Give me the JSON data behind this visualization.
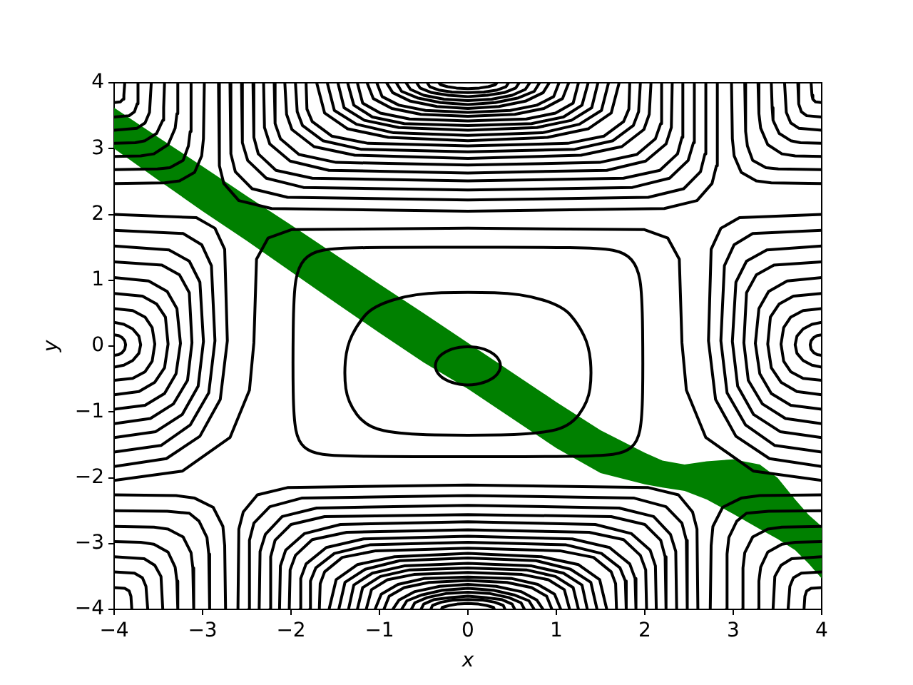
{
  "chart_data": {
    "type": "line",
    "xlabel": "x",
    "ylabel": "y",
    "xlim": [
      -4,
      4
    ],
    "ylim": [
      -4,
      4
    ],
    "color": "#000000",
    "xticks": [
      {
        "value": -4,
        "label": "−4"
      },
      {
        "value": -3,
        "label": "−3"
      },
      {
        "value": -2,
        "label": "−2"
      },
      {
        "value": -1,
        "label": "−1"
      },
      0,
      1,
      2,
      3,
      4
    ],
    "yticks": [
      {
        "value": -4,
        "label": "−4"
      },
      {
        "value": -3,
        "label": "−3"
      },
      {
        "value": -2,
        "label": "−2"
      },
      {
        "value": -1,
        "label": "−1"
      },
      0,
      1,
      2,
      3,
      4
    ],
    "series": [
      {
        "type": "area",
        "color": "#008000",
        "x": [
          -4,
          -3.5,
          -3,
          -2.5,
          -2,
          -1.5,
          -1,
          -0.5,
          0,
          0.5,
          1,
          1.5,
          2,
          2.2,
          2.45,
          2.7,
          3,
          3.3,
          3.5,
          3.7,
          3.85,
          4
        ],
        "values": [
          null,
          null,
          null,
          null,
          null,
          null,
          null,
          null,
          null,
          null,
          null,
          null,
          null,
          null,
          null,
          null,
          null,
          null,
          null,
          null,
          null,
          null
        ],
        "upper": [
          3.62,
          3.17,
          2.73,
          2.28,
          1.84,
          1.39,
          0.94,
          0.5,
          0.05,
          -0.4,
          -0.85,
          -1.28,
          -1.62,
          -1.74,
          -1.8,
          -1.75,
          -1.72,
          -1.8,
          -2.0,
          -2.33,
          -2.56,
          -2.74
        ],
        "lower": [
          3.0,
          2.52,
          2.05,
          1.6,
          1.13,
          0.66,
          0.2,
          -0.25,
          -0.65,
          -1.1,
          -1.55,
          -1.93,
          -2.1,
          -2.15,
          -2.2,
          -2.33,
          -2.55,
          -2.78,
          -2.93,
          -3.1,
          -3.3,
          -3.53
        ]
      },
      {
        "x": [
          -4,
          -3.23,
          -2.69,
          -2.47,
          -2.42,
          -2.39,
          -2.26,
          -1.99,
          0,
          1.99,
          2.26,
          2.39,
          2.42,
          2.47,
          2.69,
          3.23,
          4
        ],
        "values": [
          -2.04,
          -1.9,
          -1.39,
          -0.67,
          0.05,
          1.32,
          1.64,
          1.77,
          1.79,
          1.77,
          1.64,
          1.32,
          0.05,
          -0.67,
          -1.39,
          -1.9,
          -2.04
        ]
      },
      {
        "x": [
          -2.82,
          -2.81,
          -2.76,
          -2.59,
          -2.22,
          0,
          2.22,
          2.59,
          2.76,
          2.81,
          2.82
        ],
        "values": [
          4,
          2.74,
          2.47,
          2.21,
          2.09,
          2.05,
          2.09,
          2.21,
          2.47,
          2.74,
          4
        ]
      },
      {
        "x": [
          -2.69,
          -2.68,
          -2.63,
          -2.44,
          -2.04,
          0,
          2.04,
          2.44,
          2.63,
          2.68,
          2.69
        ],
        "values": [
          4,
          2.92,
          2.65,
          2.39,
          2.26,
          2.22,
          2.26,
          2.39,
          2.65,
          2.92,
          4
        ]
      },
      {
        "x": [
          -2.56,
          -2.55,
          -2.49,
          -2.28,
          -1.86,
          0,
          1.86,
          2.28,
          2.49,
          2.55,
          2.56
        ],
        "values": [
          4,
          3.09,
          2.82,
          2.55,
          2.41,
          2.37,
          2.41,
          2.55,
          2.82,
          3.09,
          4
        ]
      },
      {
        "x": [
          -2.43,
          -2.42,
          -2.37,
          -2.17,
          -1.76,
          0,
          1.76,
          2.17,
          2.37,
          2.42,
          2.43
        ],
        "values": [
          4,
          3.17,
          2.92,
          2.67,
          2.55,
          2.51,
          2.55,
          2.67,
          2.92,
          3.17,
          4
        ]
      },
      {
        "x": [
          -2.31,
          -2.3,
          -2.24,
          -2.01,
          -1.57,
          0,
          1.57,
          2.01,
          2.24,
          2.3,
          2.31
        ],
        "values": [
          4,
          3.32,
          3.07,
          2.81,
          2.67,
          2.63,
          2.67,
          2.81,
          3.07,
          3.32,
          4
        ]
      },
      {
        "x": [
          -2.19,
          -2.18,
          -2.12,
          -1.91,
          -1.49,
          0,
          1.49,
          1.91,
          2.12,
          2.18,
          2.19
        ],
        "values": [
          4,
          3.38,
          3.15,
          2.91,
          2.79,
          2.75,
          2.79,
          2.91,
          3.15,
          3.38,
          4
        ]
      },
      {
        "x": [
          -2.07,
          -2.05,
          -1.99,
          -1.74,
          -1.28,
          0,
          1.28,
          1.74,
          1.99,
          2.05,
          2.07
        ],
        "values": [
          4,
          3.52,
          3.29,
          3.03,
          2.9,
          2.85,
          2.9,
          3.03,
          3.29,
          3.52,
          4
        ]
      },
      {
        "x": [
          -1.95,
          -1.93,
          -1.87,
          -1.64,
          -1.21,
          0,
          1.21,
          1.64,
          1.87,
          1.93,
          1.95
        ],
        "values": [
          4,
          3.56,
          3.35,
          3.12,
          2.99,
          2.95,
          2.99,
          3.12,
          3.35,
          3.56,
          4
        ]
      },
      {
        "x": [
          -1.83,
          -1.82,
          -1.76,
          -1.54,
          -1.13,
          0,
          1.13,
          1.54,
          1.76,
          1.82,
          1.83
        ],
        "values": [
          4,
          3.6,
          3.41,
          3.19,
          3.08,
          3.04,
          3.08,
          3.19,
          3.41,
          3.6,
          4
        ]
      },
      {
        "x": [
          -1.71,
          -1.62,
          -1.36,
          -0.9,
          0,
          0.9,
          1.36,
          1.62,
          1.71
        ],
        "values": [
          4,
          3.54,
          3.3,
          3.17,
          3.12,
          3.17,
          3.3,
          3.54,
          4
        ]
      },
      {
        "x": [
          -1.59,
          -1.51,
          -1.26,
          -0.84,
          0,
          0.84,
          1.26,
          1.51,
          1.59
        ],
        "values": [
          4,
          3.58,
          3.37,
          3.24,
          3.2,
          3.24,
          3.37,
          3.58,
          4
        ]
      },
      {
        "x": [
          -1.47,
          -1.4,
          -1.17,
          -0.78,
          0,
          0.78,
          1.17,
          1.4,
          1.47
        ],
        "values": [
          4,
          3.62,
          3.43,
          3.32,
          3.28,
          3.32,
          3.43,
          3.62,
          4
        ]
      },
      {
        "x": [
          -1.36,
          -1.29,
          -1.08,
          -0.72,
          0,
          0.72,
          1.08,
          1.29,
          1.36
        ],
        "values": [
          4,
          3.66,
          3.48,
          3.38,
          3.35,
          3.38,
          3.48,
          3.66,
          4
        ]
      },
      {
        "x": [
          -1.25,
          -1.19,
          -0.99,
          -0.66,
          0,
          0.66,
          0.99,
          1.19,
          1.25
        ],
        "values": [
          4,
          3.69,
          3.54,
          3.45,
          3.42,
          3.45,
          3.54,
          3.69,
          4
        ]
      },
      {
        "x": [
          -1.14,
          -1.07,
          -0.86,
          -0.53,
          0,
          0.53,
          0.86,
          1.07,
          1.14
        ],
        "values": [
          4,
          3.76,
          3.61,
          3.52,
          3.49,
          3.52,
          3.61,
          3.76,
          4
        ]
      },
      {
        "x": [
          -1.03,
          -0.97,
          -0.78,
          -0.48,
          0,
          0.48,
          0.78,
          0.97,
          1.03
        ],
        "values": [
          4,
          3.79,
          3.66,
          3.58,
          3.55,
          3.58,
          3.66,
          3.79,
          4
        ]
      },
      {
        "x": [
          -0.92,
          -0.85,
          -0.65,
          -0.35,
          0,
          0.35,
          0.65,
          0.85,
          0.92
        ],
        "values": [
          4,
          3.85,
          3.72,
          3.64,
          3.61,
          3.64,
          3.72,
          3.85,
          4
        ]
      },
      {
        "x": [
          -0.81,
          -0.75,
          -0.57,
          -0.31,
          0,
          0.31,
          0.57,
          0.75,
          0.81
        ],
        "values": [
          4,
          3.87,
          3.77,
          3.7,
          3.67,
          3.7,
          3.77,
          3.87,
          4
        ]
      },
      {
        "x": [
          -0.7,
          -0.65,
          -0.5,
          -0.27,
          0,
          0.27,
          0.5,
          0.65,
          0.7
        ],
        "values": [
          4,
          3.9,
          3.81,
          3.75,
          3.73,
          3.75,
          3.81,
          3.9,
          4
        ]
      },
      {
        "x": [
          -0.58,
          -0.54,
          -0.41,
          -0.22,
          0,
          0.22,
          0.41,
          0.54,
          0.58
        ],
        "values": [
          4,
          3.92,
          3.85,
          3.81,
          3.79,
          3.81,
          3.85,
          3.92,
          4
        ]
      },
      {
        "x": [
          -0.46,
          -0.43,
          -0.33,
          -0.18,
          0,
          0.18,
          0.33,
          0.43,
          0.46
        ],
        "values": [
          4,
          3.94,
          3.89,
          3.86,
          3.85,
          3.86,
          3.89,
          3.94,
          4
        ]
      },
      {
        "x": [
          -0.33,
          -0.31,
          -0.23,
          -0.13,
          0,
          0.13,
          0.23,
          0.31,
          0.33
        ],
        "values": [
          4,
          3.97,
          3.94,
          3.92,
          3.91,
          3.92,
          3.94,
          3.97,
          4
        ]
      },
      {
        "x": [
          -2.6,
          -2.59,
          -2.54,
          -2.38,
          -2.04,
          0,
          2.04,
          2.38,
          2.54,
          2.59,
          2.6
        ],
        "values": [
          -4,
          -2.78,
          -2.52,
          -2.26,
          -2.15,
          -2.11,
          -2.15,
          -2.26,
          -2.52,
          -2.78,
          -4
        ]
      },
      {
        "x": [
          -2.48,
          -2.47,
          -2.42,
          -2.24,
          -1.88,
          0,
          1.88,
          2.24,
          2.42,
          2.47,
          2.48
        ],
        "values": [
          -4,
          -2.95,
          -2.69,
          -2.44,
          -2.31,
          -2.27,
          -2.31,
          -2.44,
          -2.69,
          -2.95,
          -4
        ]
      },
      {
        "x": [
          -2.36,
          -2.35,
          -2.29,
          -2.1,
          -1.71,
          0,
          1.71,
          2.1,
          2.29,
          2.35,
          2.36
        ],
        "values": [
          -4,
          -3.12,
          -2.86,
          -2.59,
          -2.46,
          -2.42,
          -2.46,
          -2.59,
          -2.86,
          -3.12,
          -4
        ]
      },
      {
        "x": [
          -2.24,
          -2.23,
          -2.18,
          -2.0,
          -1.62,
          0,
          1.62,
          2.0,
          2.18,
          2.23,
          2.24
        ],
        "values": [
          -4,
          -3.2,
          -2.95,
          -2.71,
          -2.59,
          -2.56,
          -2.59,
          -2.71,
          -2.95,
          -3.2,
          -4
        ]
      },
      {
        "x": [
          -2.13,
          -2.12,
          -2.06,
          -1.85,
          -1.44,
          0,
          1.44,
          1.85,
          2.06,
          2.12,
          2.13
        ],
        "values": [
          -4,
          -3.34,
          -3.1,
          -2.85,
          -2.71,
          -2.67,
          -2.71,
          -2.85,
          -3.1,
          -3.34,
          -4
        ]
      },
      {
        "x": [
          -2.02,
          -2.01,
          -1.95,
          -1.76,
          -1.37,
          0,
          1.37,
          1.76,
          1.95,
          2.01,
          2.02
        ],
        "values": [
          -4,
          -3.4,
          -3.18,
          -2.94,
          -2.83,
          -2.79,
          -2.83,
          -2.94,
          -3.18,
          -3.4,
          -4
        ]
      },
      {
        "x": [
          -1.9,
          -1.89,
          -1.83,
          -1.6,
          -1.18,
          0,
          1.18,
          1.6,
          1.83,
          1.89,
          1.9
        ],
        "values": [
          -4,
          -3.53,
          -3.31,
          -3.06,
          -2.93,
          -2.89,
          -2.93,
          -3.06,
          -3.31,
          -3.53,
          -4
        ]
      },
      {
        "x": [
          -1.79,
          -1.78,
          -1.72,
          -1.51,
          -1.11,
          0,
          1.11,
          1.51,
          1.72,
          1.78,
          1.79
        ],
        "values": [
          -4,
          -3.57,
          -3.37,
          -3.15,
          -3.02,
          -2.98,
          -3.02,
          -3.15,
          -3.37,
          -3.57,
          -4
        ]
      },
      {
        "x": [
          -1.68,
          -1.67,
          -1.62,
          -1.42,
          -1.04,
          0,
          1.04,
          1.42,
          1.62,
          1.67,
          1.68
        ],
        "values": [
          -4,
          -3.61,
          -3.43,
          -3.21,
          -3.11,
          -3.07,
          -3.11,
          -3.21,
          -3.43,
          -3.61,
          -4
        ]
      },
      {
        "x": [
          -1.57,
          -1.49,
          -1.25,
          -0.83,
          0,
          0.83,
          1.25,
          1.49,
          1.57
        ],
        "values": [
          -4,
          -3.55,
          -3.32,
          -3.2,
          -3.15,
          -3.2,
          -3.32,
          -3.55,
          -4
        ]
      },
      {
        "x": [
          -1.46,
          -1.39,
          -1.16,
          -0.77,
          0,
          0.77,
          1.16,
          1.39,
          1.46
        ],
        "values": [
          -4,
          -3.59,
          -3.39,
          -3.26,
          -3.22,
          -3.26,
          -3.39,
          -3.59,
          -4
        ]
      },
      {
        "x": [
          -1.35,
          -1.29,
          -1.08,
          -0.72,
          0,
          0.72,
          1.08,
          1.29,
          1.35
        ],
        "values": [
          -4,
          -3.63,
          -3.45,
          -3.34,
          -3.3,
          -3.34,
          -3.45,
          -3.63,
          -4
        ]
      },
      {
        "x": [
          -1.25,
          -1.19,
          -0.99,
          -0.66,
          0,
          0.66,
          0.99,
          1.19,
          1.25
        ],
        "values": [
          -4,
          -3.67,
          -3.5,
          -3.4,
          -3.37,
          -3.4,
          -3.5,
          -3.67,
          -4
        ]
      },
      {
        "x": [
          -1.15,
          -1.09,
          -0.91,
          -0.61,
          0,
          0.61,
          0.91,
          1.09,
          1.15
        ],
        "values": [
          -4,
          -3.7,
          -3.55,
          -3.47,
          -3.44,
          -3.47,
          -3.55,
          -3.7,
          -4
        ]
      },
      {
        "x": [
          -1.05,
          -0.98,
          -0.79,
          -0.49,
          0,
          0.49,
          0.79,
          0.98,
          1.05
        ],
        "values": [
          -4,
          -3.77,
          -3.62,
          -3.53,
          -3.51,
          -3.53,
          -3.62,
          -3.77,
          -4
        ]
      },
      {
        "x": [
          -0.95,
          -0.89,
          -0.72,
          -0.44,
          0,
          0.44,
          0.72,
          0.89,
          0.95
        ],
        "values": [
          -4,
          -3.8,
          -3.67,
          -3.59,
          -3.56,
          -3.59,
          -3.67,
          -3.8,
          -4
        ]
      },
      {
        "x": [
          -0.85,
          -0.78,
          -0.6,
          -0.32,
          0,
          0.32,
          0.6,
          0.78,
          0.85
        ],
        "values": [
          -4,
          -3.86,
          -3.73,
          -3.65,
          -3.62,
          -3.65,
          -3.73,
          -3.86,
          -4
        ]
      },
      {
        "x": [
          -0.75,
          -0.69,
          -0.52,
          -0.29,
          0,
          0.29,
          0.52,
          0.69,
          0.75
        ],
        "values": [
          -4,
          -3.87,
          -3.78,
          -3.71,
          -3.68,
          -3.71,
          -3.78,
          -3.87,
          -4
        ]
      },
      {
        "x": [
          -0.64,
          -0.6,
          -0.46,
          -0.25,
          0,
          0.25,
          0.46,
          0.6,
          0.64
        ],
        "values": [
          -4,
          -3.9,
          -3.82,
          -3.76,
          -3.74,
          -3.76,
          -3.82,
          -3.9,
          -4
        ]
      },
      {
        "x": [
          -0.53,
          -0.5,
          -0.38,
          -0.2,
          0,
          0.2,
          0.38,
          0.5,
          0.53
        ],
        "values": [
          -4,
          -3.92,
          -3.85,
          -3.82,
          -3.8,
          -3.82,
          -3.85,
          -3.92,
          -4
        ]
      },
      {
        "x": [
          -0.42,
          -0.4,
          -0.3,
          -0.17,
          0,
          0.17,
          0.3,
          0.4,
          0.42
        ],
        "values": [
          -4,
          -3.94,
          -3.89,
          -3.86,
          -3.85,
          -3.86,
          -3.89,
          -3.94,
          -4
        ]
      },
      {
        "x": [
          -0.3,
          -0.29,
          -0.21,
          -0.12,
          0,
          0.12,
          0.21,
          0.29,
          0.3
        ],
        "values": [
          -4,
          -3.97,
          -3.94,
          -3.92,
          -3.91,
          -3.92,
          -3.94,
          -3.97,
          -4
        ]
      },
      {
        "x": [
          -4,
          -3.07,
          -2.86,
          -2.75,
          -2.72,
          -2.8,
          -3.03,
          -3.41,
          -4
        ],
        "values": [
          2.0,
          1.95,
          1.79,
          1.47,
          0.08,
          -0.81,
          -1.37,
          -1.71,
          -1.83
        ]
      },
      {
        "x": [
          -4,
          -3.22,
          -3.01,
          -2.9,
          -2.86,
          -2.93,
          -3.14,
          -3.47,
          -4
        ],
        "values": [
          1.76,
          1.71,
          1.54,
          1.22,
          0.08,
          -0.71,
          -1.2,
          -1.51,
          -1.61
        ]
      },
      {
        "x": [
          -4,
          -3.38,
          -3.15,
          -3.03,
          -2.99,
          -3.05,
          -3.23,
          -3.53,
          -4
        ],
        "values": [
          1.52,
          1.46,
          1.29,
          0.97,
          0.07,
          -0.61,
          -1.04,
          -1.3,
          -1.39
        ]
      },
      {
        "x": [
          -4,
          -3.46,
          -3.26,
          -3.15,
          -3.12,
          -3.17,
          -3.33,
          -3.59,
          -4
        ],
        "values": [
          1.28,
          1.23,
          1.08,
          0.81,
          0.05,
          -0.52,
          -0.88,
          -1.1,
          -1.18
        ]
      },
      {
        "x": [
          -4,
          -3.61,
          -3.4,
          -3.29,
          -3.25,
          -3.3,
          -3.43,
          -3.65,
          -4
        ],
        "values": [
          1.04,
          0.99,
          0.83,
          0.57,
          0.04,
          -0.42,
          -0.72,
          -0.9,
          -0.96
        ]
      },
      {
        "x": [
          -4,
          -3.68,
          -3.52,
          -3.42,
          -3.39,
          -3.43,
          -3.54,
          -3.72,
          -4
        ],
        "values": [
          0.8,
          0.76,
          0.64,
          0.44,
          0.03,
          -0.33,
          -0.55,
          -0.69,
          -0.74
        ]
      },
      {
        "x": [
          -4,
          -3.79,
          -3.65,
          -3.57,
          -3.54,
          -3.57,
          -3.65,
          -3.79,
          -4
        ],
        "values": [
          0.57,
          0.54,
          0.44,
          0.28,
          0.03,
          -0.23,
          -0.39,
          -0.49,
          -0.52
        ]
      },
      {
        "x": [
          -4,
          -3.89,
          -3.79,
          -3.72,
          -3.7,
          -3.72,
          -3.79,
          -3.89,
          -4
        ],
        "values": [
          0.36,
          0.33,
          0.26,
          0.15,
          0.02,
          -0.11,
          -0.22,
          -0.29,
          -0.32
        ]
      },
      {
        "x": [
          -4,
          -3.95,
          -3.91,
          -3.88,
          -3.87,
          -3.88,
          -3.91,
          -3.95,
          -4
        ],
        "values": [
          0.17,
          0.16,
          0.13,
          0.08,
          0.02,
          -0.05,
          -0.1,
          -0.13,
          -0.14
        ]
      },
      {
        "x": [
          4,
          3.07,
          2.86,
          2.75,
          2.72,
          2.8,
          3.03,
          3.41,
          4
        ],
        "values": [
          2.0,
          1.95,
          1.79,
          1.47,
          0.08,
          -0.81,
          -1.37,
          -1.71,
          -1.83
        ]
      },
      {
        "x": [
          4,
          3.22,
          3.01,
          2.9,
          2.86,
          2.93,
          3.14,
          3.47,
          4
        ],
        "values": [
          1.76,
          1.71,
          1.54,
          1.22,
          0.08,
          -0.71,
          -1.2,
          -1.51,
          -1.61
        ]
      },
      {
        "x": [
          4,
          3.38,
          3.15,
          3.03,
          2.99,
          3.05,
          3.23,
          3.53,
          4
        ],
        "values": [
          1.52,
          1.46,
          1.29,
          0.97,
          0.07,
          -0.61,
          -1.04,
          -1.3,
          -1.39
        ]
      },
      {
        "x": [
          4,
          3.46,
          3.26,
          3.15,
          3.12,
          3.17,
          3.33,
          3.59,
          4
        ],
        "values": [
          1.28,
          1.23,
          1.08,
          0.81,
          0.05,
          -0.52,
          -0.88,
          -1.1,
          -1.18
        ]
      },
      {
        "x": [
          4,
          3.61,
          3.4,
          3.29,
          3.25,
          3.3,
          3.43,
          3.65,
          4
        ],
        "values": [
          1.04,
          0.99,
          0.83,
          0.57,
          0.04,
          -0.42,
          -0.72,
          -0.9,
          -0.96
        ]
      },
      {
        "x": [
          4,
          3.68,
          3.52,
          3.42,
          3.39,
          3.43,
          3.54,
          3.72,
          4
        ],
        "values": [
          0.8,
          0.76,
          0.64,
          0.44,
          0.03,
          -0.33,
          -0.55,
          -0.69,
          -0.74
        ]
      },
      {
        "x": [
          4,
          3.79,
          3.65,
          3.57,
          3.54,
          3.57,
          3.65,
          3.79,
          4
        ],
        "values": [
          0.57,
          0.54,
          0.44,
          0.28,
          0.03,
          -0.23,
          -0.39,
          -0.49,
          -0.52
        ]
      },
      {
        "x": [
          4,
          3.89,
          3.79,
          3.72,
          3.7,
          3.72,
          3.79,
          3.89,
          4
        ],
        "values": [
          0.36,
          0.33,
          0.26,
          0.15,
          0.02,
          -0.11,
          -0.22,
          -0.29,
          -0.32
        ]
      },
      {
        "x": [
          4,
          3.95,
          3.91,
          3.88,
          3.87,
          3.88,
          3.91,
          3.95,
          4
        ],
        "values": [
          0.17,
          0.16,
          0.13,
          0.08,
          0.02,
          -0.05,
          -0.1,
          -0.13,
          -0.14
        ]
      },
      {
        "x": [
          -4,
          -3.43,
          -3.26,
          -3.09,
          -3.01,
          -2.99,
          -2.98
        ],
        "values": [
          2.47,
          2.48,
          2.51,
          2.64,
          2.89,
          3.15,
          4
        ]
      },
      {
        "x": [
          -4,
          -3.51,
          -3.37,
          -3.22,
          -3.16,
          -3.14,
          -3.13
        ],
        "values": [
          2.68,
          2.69,
          2.71,
          2.82,
          3.04,
          3.26,
          4
        ]
      },
      {
        "x": [
          -4,
          -3.7,
          -3.55,
          -3.39,
          -3.31,
          -3.29,
          -3.28
        ],
        "values": [
          2.88,
          2.89,
          2.92,
          3.06,
          3.31,
          3.53,
          4
        ]
      },
      {
        "x": [
          -4,
          -3.76,
          -3.65,
          -3.52,
          -3.45,
          -3.44,
          -3.43
        ],
        "values": [
          3.08,
          3.09,
          3.12,
          3.23,
          3.43,
          3.62,
          4
        ]
      },
      {
        "x": [
          -4,
          -3.74,
          -3.65,
          -3.6,
          -3.58
        ],
        "values": [
          3.28,
          3.31,
          3.39,
          3.55,
          4
        ]
      },
      {
        "x": [
          -4,
          -3.83,
          -3.77,
          -3.74,
          -3.73
        ],
        "values": [
          3.48,
          3.5,
          3.56,
          3.68,
          4
        ]
      },
      {
        "x": [
          -4,
          -3.93,
          -3.9,
          -3.89,
          -3.88
        ],
        "values": [
          3.7,
          3.71,
          3.75,
          3.81,
          4
        ]
      },
      {
        "x": [
          2.98,
          2.99,
          3.01,
          3.09,
          3.26,
          3.43,
          4
        ],
        "values": [
          4,
          3.15,
          2.89,
          2.64,
          2.51,
          2.48,
          2.47
        ]
      },
      {
        "x": [
          3.13,
          3.14,
          3.16,
          3.22,
          3.37,
          3.51,
          4
        ],
        "values": [
          4,
          3.26,
          3.04,
          2.82,
          2.71,
          2.69,
          2.68
        ]
      },
      {
        "x": [
          3.28,
          3.29,
          3.31,
          3.39,
          3.55,
          3.7,
          4
        ],
        "values": [
          4,
          3.53,
          3.31,
          3.06,
          2.92,
          2.89,
          2.88
        ]
      },
      {
        "x": [
          3.43,
          3.44,
          3.45,
          3.52,
          3.65,
          3.76,
          4
        ],
        "values": [
          4,
          3.62,
          3.43,
          3.23,
          3.12,
          3.09,
          3.08
        ]
      },
      {
        "x": [
          3.58,
          3.6,
          3.65,
          3.74,
          4
        ],
        "values": [
          4,
          3.55,
          3.39,
          3.31,
          3.28
        ]
      },
      {
        "x": [
          3.73,
          3.74,
          3.77,
          3.83,
          4
        ],
        "values": [
          4,
          3.68,
          3.56,
          3.5,
          3.48
        ]
      },
      {
        "x": [
          3.88,
          3.89,
          3.9,
          3.93,
          4
        ],
        "values": [
          4,
          3.81,
          3.75,
          3.71,
          3.7
        ]
      },
      {
        "x": [
          -4,
          -3.3,
          -3.09,
          -2.88,
          -2.77,
          -2.75,
          -2.74
        ],
        "values": [
          -2.26,
          -2.27,
          -2.31,
          -2.45,
          -2.74,
          -3.03,
          -4
        ]
      },
      {
        "x": [
          -4,
          -3.4,
          -3.15,
          -3.04,
          -2.95,
          -2.93,
          -2.92
        ],
        "values": [
          -2.5,
          -2.51,
          -2.54,
          -2.66,
          -2.91,
          -3.16,
          -4
        ]
      },
      {
        "x": [
          -4,
          -3.55,
          -3.39,
          -3.22,
          -3.13,
          -3.11,
          -3.1
        ],
        "values": [
          -2.74,
          -2.75,
          -2.78,
          -2.9,
          -3.14,
          -3.37,
          -4
        ]
      },
      {
        "x": [
          -4,
          -3.7,
          -3.55,
          -3.39,
          -3.31,
          -3.29,
          -3.28
        ],
        "values": [
          -2.97,
          -2.98,
          -3.01,
          -3.13,
          -3.36,
          -3.57,
          -4
        ]
      },
      {
        "x": [
          -4,
          -3.66,
          -3.54,
          -3.47,
          -3.45
        ],
        "values": [
          -3.2,
          -3.23,
          -3.33,
          -3.5,
          -4
        ]
      },
      {
        "x": [
          -4,
          -3.77,
          -3.68,
          -3.64,
          -3.62
        ],
        "values": [
          -3.43,
          -3.45,
          -3.52,
          -3.65,
          -4
        ]
      },
      {
        "x": [
          -4,
          -3.88,
          -3.83,
          -3.81,
          -3.8
        ],
        "values": [
          -3.67,
          -3.68,
          -3.72,
          -3.8,
          -4
        ]
      },
      {
        "x": [
          2.74,
          2.75,
          2.77,
          2.88,
          3.09,
          3.3,
          4
        ],
        "values": [
          -4,
          -3.03,
          -2.74,
          -2.45,
          -2.31,
          -2.27,
          -2.26
        ]
      },
      {
        "x": [
          2.92,
          2.93,
          2.95,
          3.04,
          3.15,
          3.4,
          4
        ],
        "values": [
          -4,
          -3.16,
          -2.91,
          -2.66,
          -2.54,
          -2.51,
          -2.5
        ]
      },
      {
        "x": [
          3.1,
          3.11,
          3.13,
          3.22,
          3.39,
          3.55,
          4
        ],
        "values": [
          -4,
          -3.37,
          -3.14,
          -2.9,
          -2.78,
          -2.75,
          -2.74
        ]
      },
      {
        "x": [
          3.28,
          3.29,
          3.31,
          3.39,
          3.55,
          3.7,
          4
        ],
        "values": [
          -4,
          -3.57,
          -3.36,
          -3.13,
          -3.01,
          -2.98,
          -2.97
        ]
      },
      {
        "x": [
          3.45,
          3.47,
          3.54,
          3.66,
          4
        ],
        "values": [
          -4,
          -3.5,
          -3.33,
          -3.23,
          -3.2
        ]
      },
      {
        "x": [
          3.62,
          3.64,
          3.68,
          3.77,
          4
        ],
        "values": [
          -4,
          -3.65,
          -3.52,
          -3.45,
          -3.43
        ]
      },
      {
        "x": [
          3.8,
          3.81,
          3.83,
          3.88,
          4
        ],
        "values": [
          -4,
          -3.8,
          -3.72,
          -3.68,
          -3.67
        ]
      }
    ]
  }
}
